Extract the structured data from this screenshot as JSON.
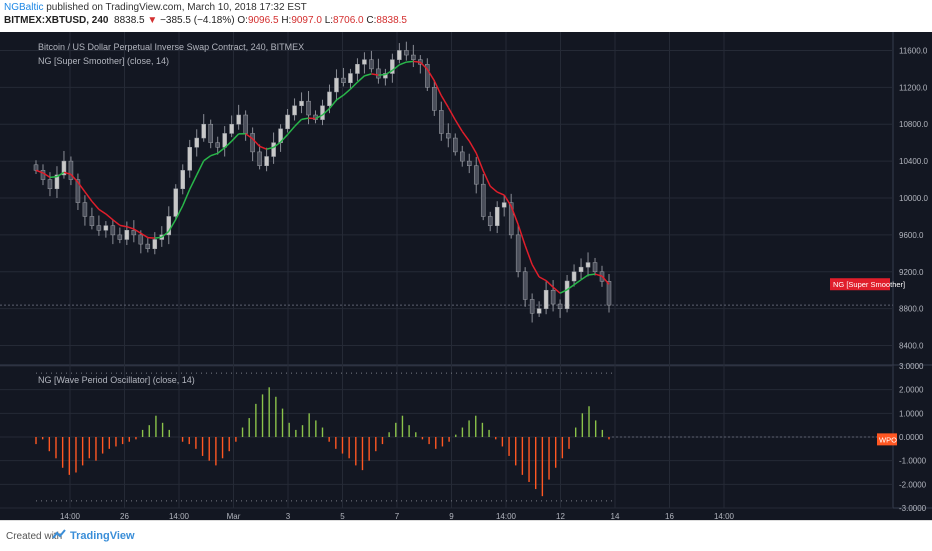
{
  "header": {
    "author": "NGBaltic",
    "published_text": "published on TradingView.com, March 10, 2018 17:32 EST",
    "symbol": "BITMEX:XBTUSD, 240",
    "last": "8838.5",
    "change_arrow": "▼",
    "change": "−385.5 (−4.18%)",
    "o_label": "O:",
    "o_val": "9096.5",
    "h_label": "H:",
    "h_val": "9097.0",
    "l_label": "L:",
    "l_val": "8706.0",
    "c_label": "C:",
    "c_val": "8838.5"
  },
  "main_pane": {
    "title": "Bitcoin / US Dollar Perpetual Inverse Swap Contract, 240, BITMEX",
    "indicator_label": "NG [Super Smoother] (close, 14)",
    "price_tag": "NG [Super Smoother]",
    "y_ticks": [
      "11600.0",
      "11200.0",
      "10800.0",
      "10400.0",
      "10000.0",
      "9600.0",
      "9200.0",
      "8800.0",
      "8400.0"
    ]
  },
  "osc_pane": {
    "indicator_label": "NG [Wave Period Oscillator] (close, 14)",
    "tag": "WPO",
    "y_ticks": [
      "3.0000",
      "2.0000",
      "1.0000",
      "0.0000",
      "-1.0000",
      "-2.0000",
      "-3.0000"
    ]
  },
  "x_ticks": [
    "14:00",
    "26",
    "14:00",
    "Mar",
    "3",
    "5",
    "7",
    "9",
    "14:00",
    "12",
    "14",
    "16",
    "14:00"
  ],
  "colors": {
    "background": "#131722",
    "grid": "#252a36",
    "candle": "#c8c8c8",
    "smoother_up": "#29b74a",
    "smoother_down": "#e01e2b",
    "osc_pos": "#8bc34a",
    "osc_neg": "#ff5722",
    "price_tag": "#e01e2b",
    "osc_tag": "#ff5722",
    "axis_text": "#b2b5be"
  },
  "chart_data": [
    {
      "type": "candlestick",
      "title": "Bitcoin / US Dollar Perpetual Inverse Swap Contract, 240, BITMEX",
      "ylim": [
        8200,
        11800
      ],
      "closes": [
        10300,
        10200,
        10100,
        10250,
        10400,
        10200,
        9950,
        9800,
        9700,
        9650,
        9700,
        9600,
        9550,
        9650,
        9600,
        9500,
        9450,
        9550,
        9600,
        9800,
        10100,
        10300,
        10550,
        10650,
        10800,
        10600,
        10550,
        10700,
        10800,
        10900,
        10700,
        10500,
        10350,
        10450,
        10600,
        10750,
        10900,
        11000,
        11050,
        10900,
        10850,
        11000,
        11150,
        11300,
        11250,
        11350,
        11450,
        11500,
        11400,
        11300,
        11350,
        11500,
        11600,
        11550,
        11500,
        11450,
        11200,
        10950,
        10700,
        10650,
        10500,
        10400,
        10350,
        10150,
        9800,
        9700,
        9900,
        9950,
        9600,
        9200,
        8900,
        8750,
        8800,
        9000,
        8850,
        8800,
        9100,
        9200,
        9250,
        9300,
        9200,
        9096.5,
        8838.5
      ],
      "series": [
        {
          "name": "NG [Super Smoother]",
          "source": "close",
          "length": 14
        }
      ]
    },
    {
      "type": "bar",
      "title": "NG [Wave Period Oscillator] (close, 14)",
      "ylim": [
        -3,
        3
      ],
      "guide_lines": [
        2.7,
        -2.7
      ],
      "values": [
        -0.3,
        -0.1,
        -0.6,
        -0.9,
        -1.3,
        -1.6,
        -1.5,
        -1.2,
        -0.9,
        -1.0,
        -0.7,
        -0.5,
        -0.4,
        -0.3,
        -0.2,
        -0.1,
        0.3,
        0.5,
        0.9,
        0.6,
        0.3,
        0.0,
        -0.2,
        -0.3,
        -0.5,
        -0.8,
        -1.0,
        -1.2,
        -0.9,
        -0.6,
        -0.2,
        0.4,
        0.8,
        1.4,
        1.8,
        2.1,
        1.7,
        1.2,
        0.6,
        0.3,
        0.5,
        1.0,
        0.7,
        0.4,
        -0.2,
        -0.5,
        -0.7,
        -0.9,
        -1.2,
        -1.4,
        -1.0,
        -0.6,
        -0.3,
        0.2,
        0.6,
        0.9,
        0.5,
        0.2,
        -0.1,
        -0.3,
        -0.5,
        -0.4,
        -0.2,
        0.1,
        0.4,
        0.7,
        0.9,
        0.6,
        0.3,
        -0.1,
        -0.4,
        -0.8,
        -1.2,
        -1.6,
        -1.9,
        -2.2,
        -2.5,
        -1.8,
        -1.3,
        -0.9,
        -0.5,
        0.4,
        1.0,
        1.3,
        0.7,
        0.3,
        -0.1
      ]
    }
  ]
}
